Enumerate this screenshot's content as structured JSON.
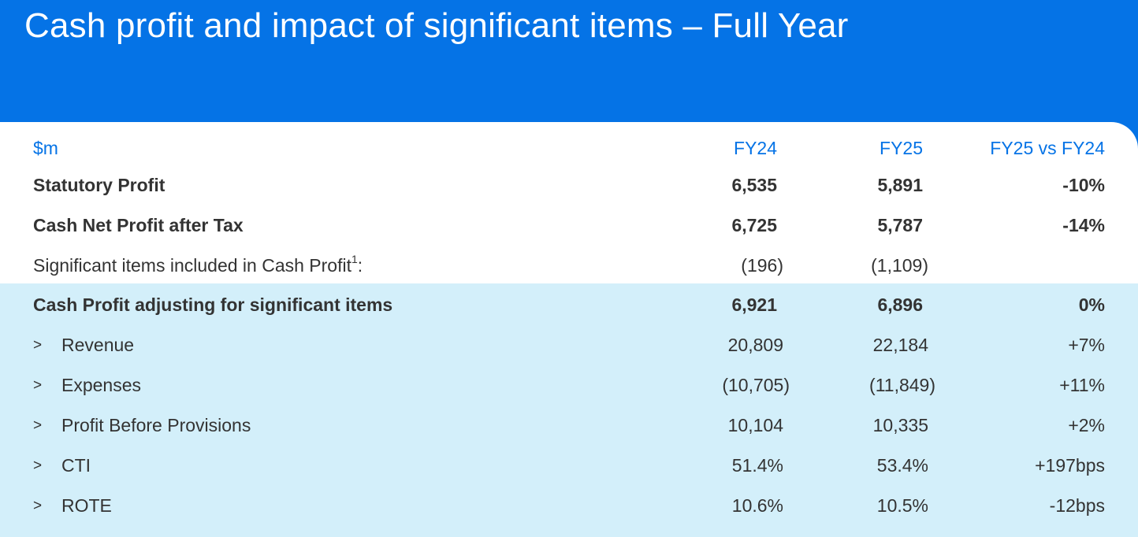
{
  "title": "Cash profit and impact of significant items – Full Year",
  "table": {
    "header": {
      "label": "$m",
      "fy24": "FY24",
      "fy25": "FY25",
      "change": "FY25 vs FY24"
    },
    "rows": [
      {
        "label": "Statutory Profit",
        "fy24": "6,535",
        "fy25": "5,891",
        "change": "-10%"
      },
      {
        "label": "Cash Net Profit after Tax",
        "fy24": "6,725",
        "fy25": "5,787",
        "change": "-14%"
      },
      {
        "label": "Significant items included in Cash Profit",
        "footnote": "1",
        "suffix": ":",
        "fy24": "(196)",
        "fy25": "(1,109)",
        "change": ""
      },
      {
        "label": "Cash Profit adjusting for significant items",
        "fy24": "6,921",
        "fy25": "6,896",
        "change": "0%"
      },
      {
        "marker": ">",
        "label": "Revenue",
        "fy24": "20,809",
        "fy25": "22,184",
        "change": "+7%"
      },
      {
        "marker": ">",
        "label": "Expenses",
        "fy24": "(10,705)",
        "fy25": "(11,849)",
        "change": "+11%"
      },
      {
        "marker": ">",
        "label": "Profit Before Provisions",
        "fy24": "10,104",
        "fy25": "10,335",
        "change": "+2%"
      },
      {
        "marker": ">",
        "label": "CTI",
        "fy24": "51.4%",
        "fy25": "53.4%",
        "change": "+197bps"
      },
      {
        "marker": ">",
        "label": "ROTE",
        "fy24": "10.6%",
        "fy25": "10.5%",
        "change": "-12bps"
      }
    ]
  },
  "colors": {
    "header_bg": "#0573e6",
    "highlight_bg": "#d3effa",
    "header_text": "#0573e6",
    "body_text": "#333333"
  }
}
